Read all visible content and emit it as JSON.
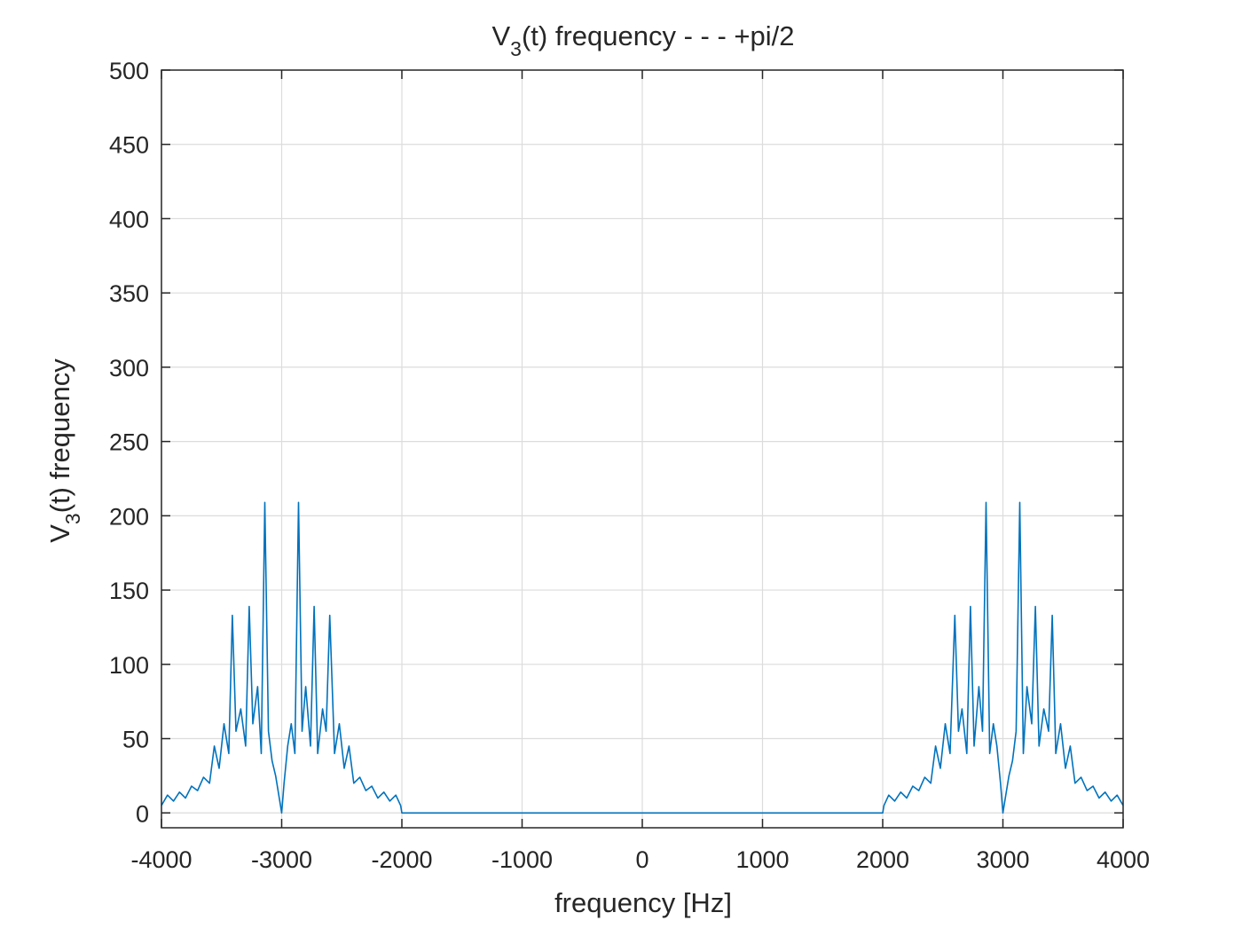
{
  "chart_data": {
    "type": "line",
    "title": {
      "pre": "V",
      "sub": "3",
      "post": "(t) frequency - - - +pi/2"
    },
    "xlabel": "frequency [Hz]",
    "ylabel": {
      "pre": "V",
      "sub": "3",
      "post": "(t) frequency"
    },
    "xlim": [
      -4000,
      4000
    ],
    "ylim": [
      -10,
      500
    ],
    "xticks": [
      -4000,
      -3000,
      -2000,
      -1000,
      0,
      1000,
      2000,
      3000,
      4000
    ],
    "xtick_labels": [
      "-4000",
      "-3000",
      "-2000",
      "-1000",
      "0",
      "1000",
      "2000",
      "3000",
      "4000"
    ],
    "yticks": [
      0,
      50,
      100,
      150,
      200,
      250,
      300,
      350,
      400,
      450,
      500
    ],
    "ytick_labels": [
      "0",
      "50",
      "100",
      "150",
      "200",
      "250",
      "300",
      "350",
      "400",
      "450",
      "500"
    ],
    "grid": true,
    "line_color": "#0072BD",
    "series": [
      {
        "x": [
          -4000,
          -3950,
          -3900,
          -3850,
          -3800,
          -3750,
          -3700,
          -3650,
          -3600,
          -3560,
          -3520,
          -3480,
          -3440,
          -3410,
          -3380,
          -3340,
          -3300,
          -3270,
          -3240,
          -3200,
          -3170,
          -3140,
          -3110,
          -3080,
          -3050,
          -3020,
          -3000,
          -2980,
          -2950,
          -2920,
          -2890,
          -2860,
          -2830,
          -2800,
          -2760,
          -2730,
          -2700,
          -2660,
          -2630,
          -2600,
          -2560,
          -2520,
          -2480,
          -2440,
          -2400,
          -2350,
          -2300,
          -2250,
          -2200,
          -2150,
          -2100,
          -2050,
          -2010,
          -2000,
          -1000,
          0,
          1000,
          2000,
          2010,
          2050,
          2100,
          2150,
          2200,
          2250,
          2300,
          2350,
          2400,
          2440,
          2480,
          2520,
          2560,
          2600,
          2630,
          2660,
          2700,
          2730,
          2760,
          2800,
          2830,
          2860,
          2890,
          2920,
          2950,
          2980,
          3000,
          3020,
          3050,
          3080,
          3110,
          3140,
          3170,
          3200,
          3240,
          3270,
          3300,
          3340,
          3380,
          3410,
          3440,
          3480,
          3520,
          3560,
          3600,
          3650,
          3700,
          3750,
          3800,
          3850,
          3900,
          3950,
          4000
        ],
        "y": [
          5,
          12,
          8,
          14,
          10,
          18,
          15,
          24,
          20,
          45,
          30,
          60,
          40,
          133,
          55,
          70,
          45,
          139,
          60,
          85,
          40,
          209,
          55,
          35,
          25,
          10,
          0,
          20,
          45,
          60,
          40,
          209,
          55,
          85,
          45,
          139,
          40,
          70,
          55,
          133,
          40,
          60,
          30,
          45,
          20,
          24,
          15,
          18,
          10,
          14,
          8,
          12,
          5,
          0,
          0,
          0,
          0,
          0,
          5,
          12,
          8,
          14,
          10,
          18,
          15,
          24,
          20,
          45,
          30,
          60,
          40,
          133,
          55,
          70,
          40,
          139,
          45,
          85,
          55,
          209,
          40,
          60,
          45,
          20,
          0,
          10,
          25,
          35,
          55,
          209,
          40,
          85,
          60,
          139,
          45,
          70,
          55,
          133,
          40,
          60,
          30,
          45,
          20,
          24,
          15,
          18,
          10,
          14,
          8,
          12,
          5
        ]
      }
    ]
  }
}
